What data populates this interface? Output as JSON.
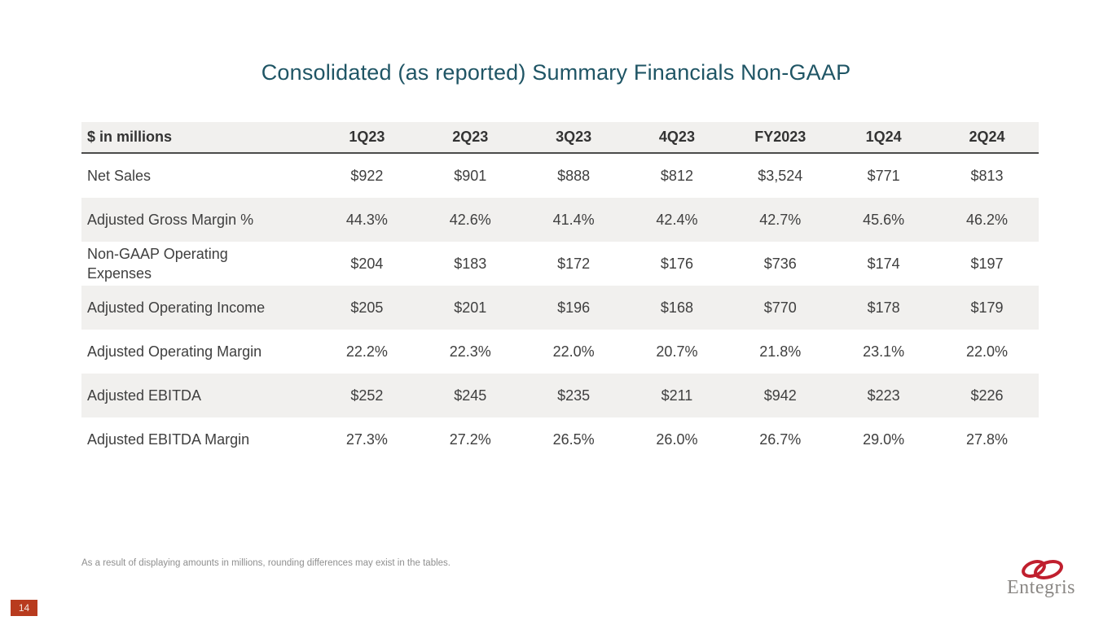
{
  "slide": {
    "title": "Consolidated (as reported) Summary Financials Non-GAAP",
    "footnote": "As a result of displaying amounts in millions, rounding differences may exist in the tables.",
    "page_number": "14",
    "logo_text": "Entegris"
  },
  "colors": {
    "title_teal": "#1f5565",
    "stripe_gray": "#f1f0ee",
    "header_border": "#4b4b4b",
    "body_text": "#3f3f3f",
    "badge_red": "#b83b1e",
    "logo_red": "#c01f2e",
    "logo_gray": "#8a8784",
    "footnote_gray": "#8f8f8f"
  },
  "table": {
    "header": [
      "$ in millions",
      "1Q23",
      "2Q23",
      "3Q23",
      "4Q23",
      "FY2023",
      "1Q24",
      "2Q24"
    ],
    "rows": [
      {
        "label": "Net Sales",
        "shaded": false,
        "values": [
          "$922",
          "$901",
          "$888",
          "$812",
          "$3,524",
          "$771",
          "$813"
        ]
      },
      {
        "label": "Adjusted Gross Margin %",
        "shaded": true,
        "values": [
          "44.3%",
          "42.6%",
          "41.4%",
          "42.4%",
          "42.7%",
          "45.6%",
          "46.2%"
        ]
      },
      {
        "label": "Non-GAAP Operating\nExpenses",
        "shaded": false,
        "values": [
          "$204",
          "$183",
          "$172",
          "$176",
          "$736",
          "$174",
          "$197"
        ]
      },
      {
        "label": "Adjusted Operating Income",
        "shaded": true,
        "values": [
          "$205",
          "$201",
          "$196",
          "$168",
          "$770",
          "$178",
          "$179"
        ]
      },
      {
        "label": "Adjusted Operating Margin",
        "shaded": false,
        "values": [
          "22.2%",
          "22.3%",
          "22.0%",
          "20.7%",
          "21.8%",
          "23.1%",
          "22.0%"
        ]
      },
      {
        "label": "Adjusted EBITDA",
        "shaded": true,
        "values": [
          "$252",
          "$245",
          "$235",
          "$211",
          "$942",
          "$223",
          "$226"
        ]
      },
      {
        "label": "Adjusted EBITDA Margin",
        "shaded": false,
        "values": [
          "27.3%",
          "27.2%",
          "26.5%",
          "26.0%",
          "26.7%",
          "29.0%",
          "27.8%"
        ]
      }
    ]
  }
}
